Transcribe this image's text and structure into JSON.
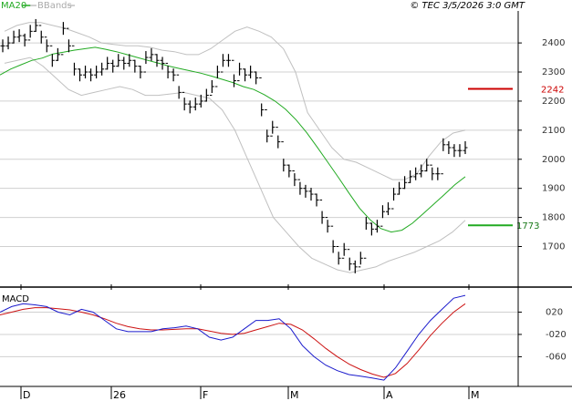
{
  "header": {
    "ma_label": "MA20",
    "bb_label": "BBands",
    "copyright": "© TEC 3/5/2026 3:0 GMT"
  },
  "colors": {
    "ma": "#22aa22",
    "bands": "#c0c0c0",
    "price": "#000000",
    "macd": "#1a1acc",
    "signal": "#cc1111",
    "resistance": "#cc0000",
    "support": "#22aa22",
    "grid": "#d0d0d0"
  },
  "chart_data": [
    {
      "type": "line",
      "title": "",
      "ylim": [
        1570,
        2510
      ],
      "y_ticks": [
        1700,
        1800,
        1900,
        2000,
        2100,
        2200,
        2300,
        2400
      ],
      "x_ticks": [
        "D",
        "26",
        "F",
        "M",
        "A",
        "M"
      ],
      "levels": [
        {
          "name": "resistance",
          "value": 2242,
          "label": "2242"
        },
        {
          "name": "support",
          "value": 1773,
          "label": "1773"
        }
      ],
      "series": [
        {
          "name": "price",
          "values": [
            2390,
            2400,
            2420,
            2425,
            2410,
            2440,
            2460,
            2420,
            2390,
            2340,
            2360,
            2450,
            2390,
            2310,
            2290,
            2300,
            2290,
            2300,
            2310,
            2330,
            2320,
            2340,
            2330,
            2340,
            2320,
            2300,
            2350,
            2360,
            2340,
            2330,
            2300,
            2290,
            2230,
            2190,
            2180,
            2190,
            2200,
            2220,
            2250,
            2300,
            2340,
            2340,
            2270,
            2310,
            2290,
            2300,
            2280,
            2170,
            2080,
            2110,
            2060,
            1980,
            1960,
            1930,
            1900,
            1890,
            1880,
            1860,
            1800,
            1770,
            1700,
            1660,
            1690,
            1640,
            1630,
            1660,
            1780,
            1760,
            1770,
            1820,
            1830,
            1880,
            1900,
            1920,
            1940,
            1950,
            1960,
            1980,
            1950,
            1950,
            2050,
            2040,
            2030,
            2030,
            2040
          ]
        },
        {
          "name": "ma",
          "values": [
            2290,
            2310,
            2325,
            2340,
            2348,
            2362,
            2368,
            2375,
            2380,
            2385,
            2378,
            2370,
            2360,
            2350,
            2340,
            2330,
            2320,
            2312,
            2304,
            2296,
            2286,
            2275,
            2264,
            2250,
            2240,
            2222,
            2200,
            2172,
            2136,
            2092,
            2042,
            1990,
            1938,
            1884,
            1832,
            1792,
            1762,
            1750,
            1756,
            1780,
            1812,
            1845,
            1878,
            1912,
            1940
          ]
        },
        {
          "name": "upper-band",
          "values": [
            2440,
            2460,
            2470,
            2470,
            2460,
            2450,
            2435,
            2420,
            2400,
            2395,
            2390,
            2390,
            2385,
            2375,
            2370,
            2360,
            2360,
            2380,
            2410,
            2440,
            2455,
            2440,
            2420,
            2380,
            2300,
            2160,
            2100,
            2040,
            2000,
            1990,
            1970,
            1950,
            1930,
            1930,
            1950,
            2010,
            2060,
            2090,
            2100
          ]
        },
        {
          "name": "lower-band",
          "values": [
            2330,
            2340,
            2350,
            2320,
            2280,
            2240,
            2220,
            2230,
            2240,
            2250,
            2240,
            2220,
            2220,
            2225,
            2230,
            2220,
            2210,
            2170,
            2100,
            2000,
            1900,
            1800,
            1750,
            1700,
            1660,
            1640,
            1620,
            1610,
            1620,
            1630,
            1650,
            1665,
            1680,
            1700,
            1720,
            1750,
            1790
          ]
        }
      ]
    },
    {
      "type": "line",
      "title": "MACD",
      "ylim": [
        -110,
        60
      ],
      "y_ticks": [
        20,
        -20,
        -60
      ],
      "series": [
        {
          "name": "macd",
          "values": [
            20,
            30,
            35,
            33,
            30,
            20,
            15,
            25,
            20,
            5,
            -10,
            -15,
            -15,
            -15,
            -10,
            -8,
            -5,
            -10,
            -25,
            -30,
            -25,
            -10,
            5,
            5,
            8,
            -10,
            -40,
            -60,
            -75,
            -85,
            -92,
            -95,
            -98,
            -102,
            -80,
            -50,
            -20,
            5,
            25,
            45,
            50
          ]
        },
        {
          "name": "signal",
          "values": [
            15,
            20,
            25,
            28,
            28,
            26,
            24,
            20,
            15,
            8,
            0,
            -6,
            -10,
            -12,
            -12,
            -11,
            -10,
            -10,
            -14,
            -18,
            -20,
            -18,
            -12,
            -6,
            0,
            -2,
            -12,
            -28,
            -45,
            -60,
            -73,
            -83,
            -91,
            -97,
            -90,
            -72,
            -48,
            -22,
            0,
            20,
            35
          ]
        }
      ]
    }
  ]
}
